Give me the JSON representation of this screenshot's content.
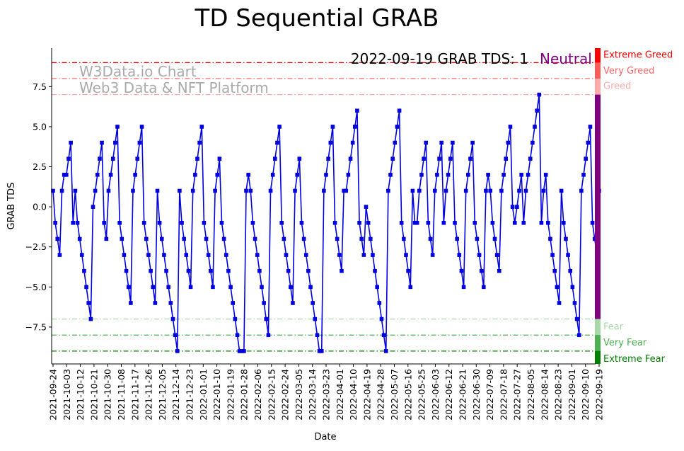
{
  "chart_data": {
    "type": "line",
    "title": "TD Sequential GRAB",
    "xlabel": "Date",
    "ylabel": "GRAB TDS",
    "ylim": [
      -9.8,
      9.9
    ],
    "yticks": [
      -7.5,
      -5.0,
      -2.5,
      0.0,
      2.5,
      5.0,
      7.5
    ],
    "ytick_labels": [
      "−7.5",
      "−5.0",
      "−2.5",
      "0.0",
      "2.5",
      "5.0",
      "7.5"
    ],
    "x_start_date": "2021-09-24",
    "x_end_date": "2022-09-19",
    "x_tick_labels": [
      "2021-09-24",
      "2021-10-03",
      "2021-10-12",
      "2021-10-21",
      "2021-10-30",
      "2021-11-08",
      "2021-11-17",
      "2021-11-26",
      "2021-12-05",
      "2021-12-14",
      "2021-12-23",
      "2022-01-01",
      "2022-01-10",
      "2022-01-19",
      "2022-01-28",
      "2022-02-06",
      "2022-02-15",
      "2022-02-24",
      "2022-03-05",
      "2022-03-14",
      "2022-03-23",
      "2022-04-01",
      "2022-04-10",
      "2022-04-19",
      "2022-04-28",
      "2022-05-07",
      "2022-05-16",
      "2022-05-25",
      "2022-06-03",
      "2022-06-12",
      "2022-06-21",
      "2022-06-30",
      "2022-07-09",
      "2022-07-18",
      "2022-07-27",
      "2022-08-05",
      "2022-08-14",
      "2022-08-23",
      "2022-09-01",
      "2022-09-10",
      "2022-09-19"
    ],
    "series": [
      {
        "name": "GRAB TDS",
        "color": "#0000e0",
        "marker": "square",
        "values": [
          1,
          -1,
          -2,
          -3,
          1,
          2,
          2,
          3,
          4,
          -1,
          1,
          -1,
          -2,
          -3,
          -4,
          -5,
          -6,
          -7,
          0,
          1,
          2,
          3,
          4,
          -1,
          -2,
          1,
          2,
          3,
          4,
          5,
          -1,
          -2,
          -3,
          -4,
          -5,
          -6,
          1,
          2,
          3,
          4,
          5,
          -1,
          -2,
          -3,
          -4,
          -5,
          -6,
          1,
          -1,
          -2,
          -3,
          -4,
          -5,
          -6,
          -7,
          -8,
          -9,
          1,
          -1,
          -2,
          -3,
          -4,
          -5,
          1,
          2,
          3,
          4,
          5,
          -1,
          -2,
          -3,
          -4,
          -5,
          1,
          2,
          3,
          -1,
          -2,
          -3,
          -4,
          -5,
          -6,
          -7,
          -8,
          -9,
          -9,
          -9,
          1,
          2,
          1,
          -1,
          -2,
          -3,
          -4,
          -5,
          -6,
          -7,
          -8,
          1,
          2,
          3,
          4,
          5,
          -1,
          -2,
          -3,
          -4,
          -5,
          -6,
          1,
          2,
          3,
          -1,
          -2,
          -3,
          -4,
          -5,
          -6,
          -7,
          -8,
          -9,
          -9,
          1,
          2,
          3,
          4,
          5,
          -1,
          -2,
          -3,
          -4,
          1,
          1,
          2,
          3,
          4,
          5,
          6,
          -1,
          -2,
          -3,
          0,
          -1,
          -2,
          -3,
          -4,
          -5,
          -6,
          -7,
          -8,
          -9,
          1,
          2,
          3,
          4,
          5,
          6,
          -1,
          -2,
          -3,
          -4,
          -5,
          1,
          -1,
          -1,
          1,
          2,
          3,
          4,
          -1,
          -2,
          -3,
          1,
          2,
          3,
          4,
          -1,
          1,
          2,
          3,
          4,
          -1,
          -2,
          -3,
          -4,
          -5,
          1,
          2,
          3,
          4,
          -1,
          -2,
          -3,
          -4,
          -5,
          1,
          2,
          1,
          -1,
          -2,
          -3,
          -4,
          1,
          2,
          3,
          4,
          5,
          0,
          -1,
          0,
          1,
          2,
          -1,
          1,
          2,
          3,
          4,
          5,
          6,
          7,
          -1,
          1,
          2,
          -1,
          -2,
          -3,
          -4,
          -5,
          -6,
          1,
          -1,
          -2,
          -3,
          -4,
          -5,
          -6,
          -7,
          -8,
          1,
          2,
          3,
          4,
          5,
          -1,
          -2,
          -3,
          1
        ]
      }
    ],
    "levels": [
      {
        "name": "Extreme Greed",
        "value": 9,
        "color": "#ff0000"
      },
      {
        "name": "Very Greed",
        "value": 8,
        "color": "#ff6666"
      },
      {
        "name": "Greed",
        "value": 7,
        "color": "#ffaaaa"
      },
      {
        "name": "Fear",
        "value": -7,
        "color": "#a8d8a8"
      },
      {
        "name": "Very Fear",
        "value": -8,
        "color": "#4caf50"
      },
      {
        "name": "Extreme Fear",
        "value": -9,
        "color": "#008000"
      }
    ],
    "sidebar": [
      {
        "from": 9,
        "to": 9.9,
        "color": "#ff0000"
      },
      {
        "from": 8,
        "to": 9,
        "color": "#ff5a5a"
      },
      {
        "from": 7,
        "to": 8,
        "color": "#ffaaaa"
      },
      {
        "from": -7,
        "to": 7,
        "color": "#800080"
      },
      {
        "from": -8,
        "to": -7,
        "color": "#a8d8a8"
      },
      {
        "from": -9,
        "to": -8,
        "color": "#4caf50"
      },
      {
        "from": -9.8,
        "to": -9,
        "color": "#008000"
      }
    ],
    "annotation": {
      "text": "2022-09-19 GRAB TDS: 1",
      "status": "Neutral",
      "status_color": "#800080"
    },
    "watermark": {
      "line1": "W3Data.io Chart",
      "line2": "Web3 Data & NFT Platform"
    }
  }
}
